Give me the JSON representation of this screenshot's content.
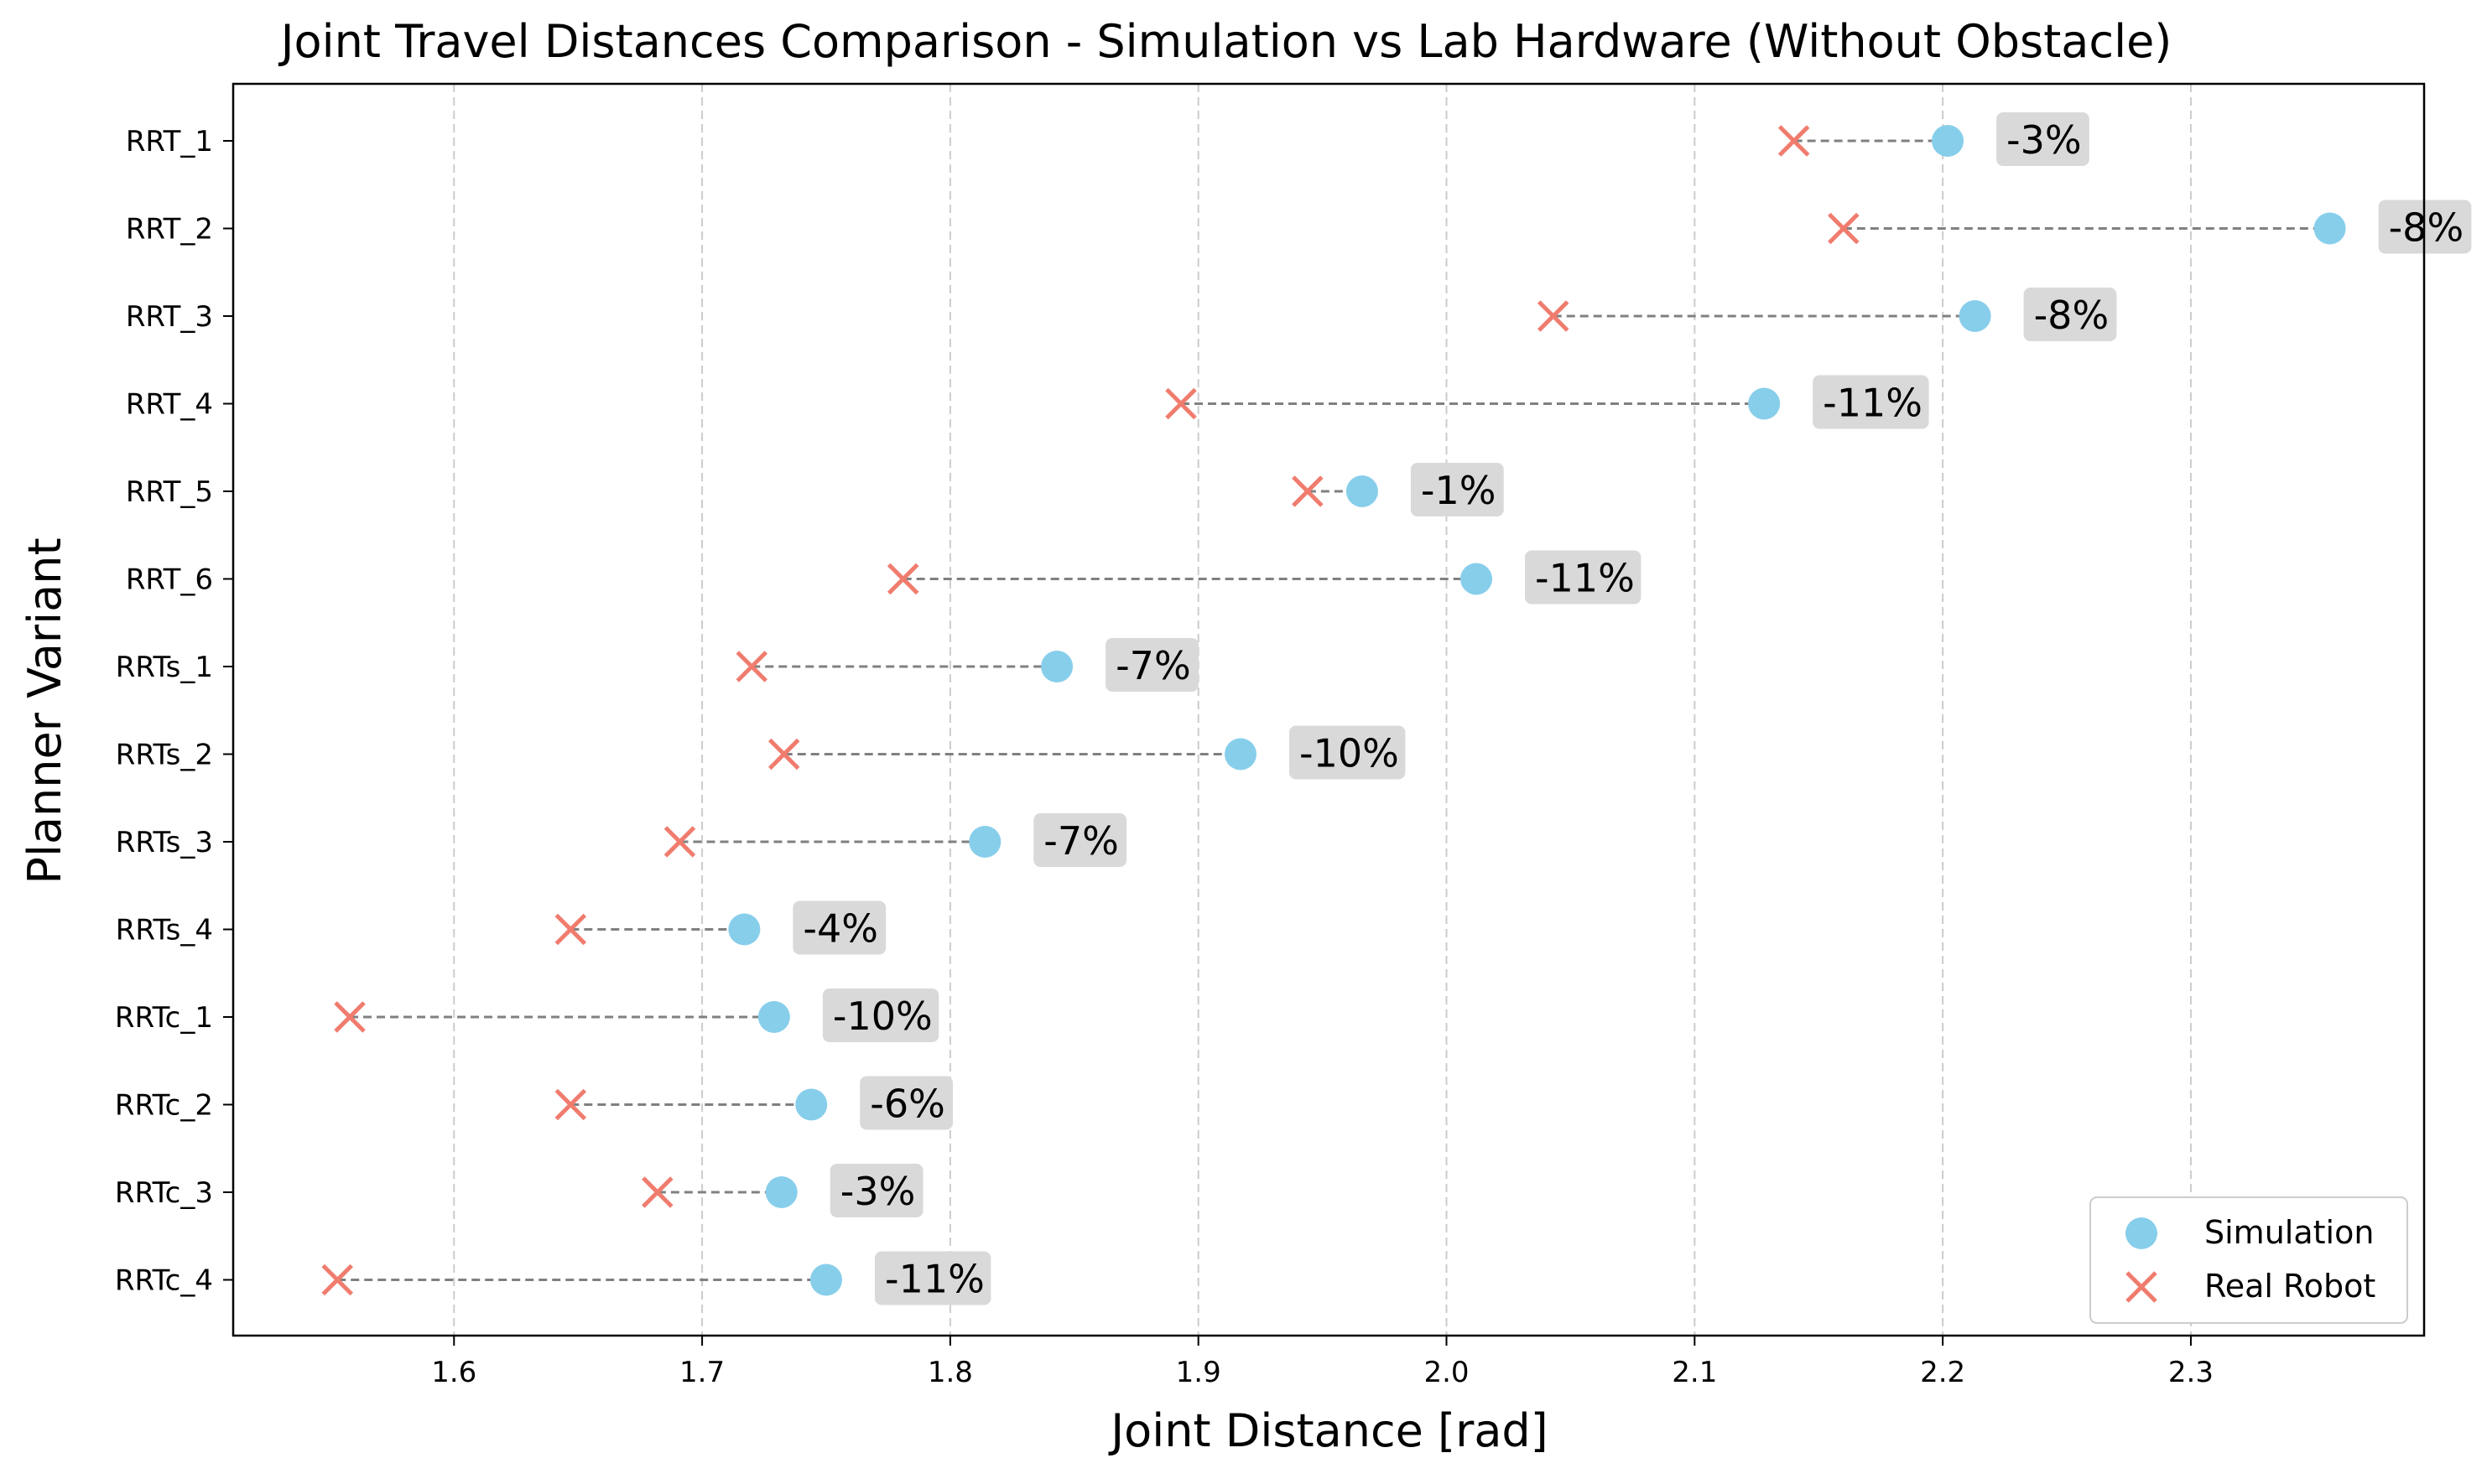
{
  "chart_data": {
    "type": "scatter",
    "title": "Joint Travel Distances Comparison - Simulation vs Lab Hardware (Without Obstacle)",
    "xlabel": "Joint Distance [rad]",
    "ylabel": "Planner Variant",
    "xlim": [
      1.511,
      2.394
    ],
    "xticks": [
      1.6,
      1.7,
      1.8,
      1.9,
      2.0,
      2.1,
      2.2,
      2.3
    ],
    "xtick_labels": [
      "1.6",
      "1.7",
      "1.8",
      "1.9",
      "2.0",
      "2.1",
      "2.2",
      "2.3"
    ],
    "grid": "vertical dashed",
    "legend_position": "lower-right",
    "categories": [
      "RRT_1",
      "RRT_2",
      "RRT_3",
      "RRT_4",
      "RRT_5",
      "RRT_6",
      "RRTs_1",
      "RRTs_2",
      "RRTs_3",
      "RRTs_4",
      "RRTc_1",
      "RRTc_2",
      "RRTc_3",
      "RRTc_4"
    ],
    "series": [
      {
        "name": "Simulation",
        "marker": "circle",
        "color": "#87CEEB",
        "values": [
          2.202,
          2.356,
          2.213,
          2.128,
          1.966,
          2.012,
          1.843,
          1.917,
          1.814,
          1.717,
          1.729,
          1.744,
          1.732,
          1.75
        ]
      },
      {
        "name": "Real Robot",
        "marker": "x",
        "color": "#F07C6E",
        "values": [
          2.14,
          2.16,
          2.043,
          1.893,
          1.944,
          1.781,
          1.72,
          1.733,
          1.691,
          1.647,
          1.558,
          1.647,
          1.682,
          1.553
        ]
      }
    ],
    "annotations": [
      "-3%",
      "-8%",
      "-8%",
      "-11%",
      "-1%",
      "-11%",
      "-7%",
      "-10%",
      "-7%",
      "-4%",
      "-10%",
      "-6%",
      "-3%",
      "-11%"
    ],
    "connector_color": "#808080",
    "annotation_background": "#D9D9D9"
  }
}
